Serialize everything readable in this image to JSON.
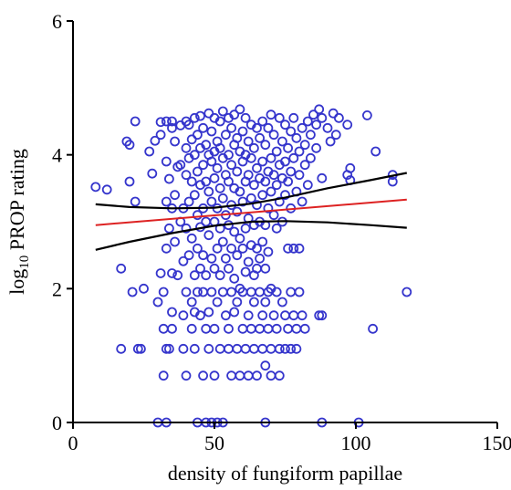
{
  "chart_data": {
    "type": "scatter",
    "title": "",
    "xlabel": "density of fungiform papillae",
    "ylabel_prefix": "log",
    "ylabel_subscript": "10",
    "ylabel_suffix": " PROP rating",
    "xlim": [
      0,
      150
    ],
    "ylim": [
      0,
      6
    ],
    "x_ticks": [
      0,
      50,
      100,
      150
    ],
    "y_ticks": [
      0,
      2,
      4,
      6
    ],
    "grid": false,
    "colors": {
      "points": "#3535cc",
      "fit": "#dd2222",
      "ci": "#000000",
      "axis": "#000000"
    },
    "series": [
      {
        "marker": "open-circle",
        "points": [
          [
            8,
            3.52
          ],
          [
            12,
            3.48
          ],
          [
            17,
            2.3
          ],
          [
            17,
            1.1
          ],
          [
            19,
            4.2
          ],
          [
            20,
            4.15
          ],
          [
            20,
            3.6
          ],
          [
            21,
            1.95
          ],
          [
            22,
            4.5
          ],
          [
            22,
            3.3
          ],
          [
            23,
            1.1
          ],
          [
            24,
            1.1
          ],
          [
            25,
            2.0
          ],
          [
            27,
            4.05
          ],
          [
            28,
            3.72
          ],
          [
            29,
            4.21
          ],
          [
            30,
            1.8
          ],
          [
            30,
            0.0
          ],
          [
            31,
            4.49
          ],
          [
            31,
            4.3
          ],
          [
            31,
            2.23
          ],
          [
            32,
            1.95
          ],
          [
            32,
            1.4
          ],
          [
            32,
            0.7
          ],
          [
            33,
            4.5
          ],
          [
            33,
            3.9
          ],
          [
            33,
            3.3
          ],
          [
            33,
            2.6
          ],
          [
            33,
            1.1
          ],
          [
            33,
            0.0
          ],
          [
            34,
            3.64
          ],
          [
            34,
            2.9
          ],
          [
            34,
            1.1
          ],
          [
            35,
            4.5
          ],
          [
            35,
            4.4
          ],
          [
            35,
            3.2
          ],
          [
            35,
            2.23
          ],
          [
            35,
            1.65
          ],
          [
            35,
            1.4
          ],
          [
            36,
            4.2
          ],
          [
            36,
            3.4
          ],
          [
            36,
            2.7
          ],
          [
            37,
            3.82
          ],
          [
            37,
            2.2
          ],
          [
            38,
            4.44
          ],
          [
            38,
            3.85
          ],
          [
            38,
            3.0
          ],
          [
            39,
            3.2
          ],
          [
            39,
            2.41
          ],
          [
            39,
            1.6
          ],
          [
            39,
            1.1
          ],
          [
            40,
            4.5
          ],
          [
            40,
            4.1
          ],
          [
            40,
            3.7
          ],
          [
            40,
            2.9
          ],
          [
            40,
            1.95
          ],
          [
            40,
            0.7
          ],
          [
            41,
            4.45
          ],
          [
            41,
            3.95
          ],
          [
            41,
            3.3
          ],
          [
            41,
            2.5
          ],
          [
            42,
            4.23
          ],
          [
            42,
            3.6
          ],
          [
            42,
            2.75
          ],
          [
            42,
            1.8
          ],
          [
            42,
            1.4
          ],
          [
            43,
            4.55
          ],
          [
            43,
            4.0
          ],
          [
            43,
            3.4
          ],
          [
            43,
            2.2
          ],
          [
            43,
            1.65
          ],
          [
            43,
            1.1
          ],
          [
            44,
            4.3
          ],
          [
            44,
            3.75
          ],
          [
            44,
            3.1
          ],
          [
            44,
            2.6
          ],
          [
            44,
            1.95
          ],
          [
            44,
            0.0
          ],
          [
            45,
            4.58
          ],
          [
            45,
            4.1
          ],
          [
            45,
            3.55
          ],
          [
            45,
            2.92
          ],
          [
            45,
            2.3
          ],
          [
            45,
            1.6
          ],
          [
            46,
            4.4
          ],
          [
            46,
            3.85
          ],
          [
            46,
            3.2
          ],
          [
            46,
            2.5
          ],
          [
            46,
            1.95
          ],
          [
            46,
            0.7
          ],
          [
            47,
            4.15
          ],
          [
            47,
            3.6
          ],
          [
            47,
            3.0
          ],
          [
            47,
            2.2
          ],
          [
            47,
            1.4
          ],
          [
            47,
            0.0
          ],
          [
            48,
            4.62
          ],
          [
            48,
            4.0
          ],
          [
            48,
            3.45
          ],
          [
            48,
            2.8
          ],
          [
            48,
            1.65
          ],
          [
            48,
            1.1
          ],
          [
            49,
            4.35
          ],
          [
            49,
            3.9
          ],
          [
            49,
            3.3
          ],
          [
            49,
            2.45
          ],
          [
            49,
            1.95
          ],
          [
            49,
            0.0
          ],
          [
            50,
            4.55
          ],
          [
            50,
            4.05
          ],
          [
            50,
            3.65
          ],
          [
            50,
            3.0
          ],
          [
            50,
            2.3
          ],
          [
            50,
            1.4
          ],
          [
            50,
            0.7
          ],
          [
            51,
            4.2
          ],
          [
            51,
            3.8
          ],
          [
            51,
            3.2
          ],
          [
            51,
            2.6
          ],
          [
            51,
            1.8
          ],
          [
            51,
            0.0
          ],
          [
            52,
            4.5
          ],
          [
            52,
            4.1
          ],
          [
            52,
            3.5
          ],
          [
            52,
            2.9
          ],
          [
            52,
            2.2
          ],
          [
            52,
            1.1
          ],
          [
            53,
            4.65
          ],
          [
            53,
            3.95
          ],
          [
            53,
            3.35
          ],
          [
            53,
            2.7
          ],
          [
            53,
            1.95
          ],
          [
            53,
            0.0
          ],
          [
            54,
            4.3
          ],
          [
            54,
            3.7
          ],
          [
            54,
            3.1
          ],
          [
            54,
            2.45
          ],
          [
            54,
            1.6
          ],
          [
            55,
            4.55
          ],
          [
            55,
            4.0
          ],
          [
            55,
            3.6
          ],
          [
            55,
            2.95
          ],
          [
            55,
            2.3
          ],
          [
            55,
            1.4
          ],
          [
            55,
            1.1
          ],
          [
            56,
            4.4
          ],
          [
            56,
            3.85
          ],
          [
            56,
            3.25
          ],
          [
            56,
            2.6
          ],
          [
            56,
            1.95
          ],
          [
            56,
            0.7
          ],
          [
            57,
            4.6
          ],
          [
            57,
            4.15
          ],
          [
            57,
            3.5
          ],
          [
            57,
            2.85
          ],
          [
            57,
            2.15
          ],
          [
            57,
            1.65
          ],
          [
            58,
            4.25
          ],
          [
            58,
            3.75
          ],
          [
            58,
            3.15
          ],
          [
            58,
            2.5
          ],
          [
            58,
            1.8
          ],
          [
            58,
            1.1
          ],
          [
            59,
            4.68
          ],
          [
            59,
            4.05
          ],
          [
            59,
            3.45
          ],
          [
            59,
            2.75
          ],
          [
            59,
            2.0
          ],
          [
            59,
            0.7
          ],
          [
            60,
            4.35
          ],
          [
            60,
            3.9
          ],
          [
            60,
            3.3
          ],
          [
            60,
            2.6
          ],
          [
            60,
            1.95
          ],
          [
            60,
            1.4
          ],
          [
            61,
            4.55
          ],
          [
            61,
            4.0
          ],
          [
            61,
            3.6
          ],
          [
            61,
            2.9
          ],
          [
            61,
            2.25
          ],
          [
            61,
            1.1
          ],
          [
            62,
            4.2
          ],
          [
            62,
            3.7
          ],
          [
            62,
            3.05
          ],
          [
            62,
            2.4
          ],
          [
            62,
            1.6
          ],
          [
            62,
            0.7
          ],
          [
            63,
            4.45
          ],
          [
            63,
            3.95
          ],
          [
            63,
            3.35
          ],
          [
            63,
            2.65
          ],
          [
            63,
            1.95
          ],
          [
            63,
            1.4
          ],
          [
            64,
            4.1
          ],
          [
            64,
            3.55
          ],
          [
            64,
            2.95
          ],
          [
            64,
            2.2
          ],
          [
            64,
            1.8
          ],
          [
            64,
            1.1
          ],
          [
            65,
            4.4
          ],
          [
            65,
            3.8
          ],
          [
            65,
            3.25
          ],
          [
            65,
            2.6
          ],
          [
            65,
            2.3
          ],
          [
            65,
            0.7
          ],
          [
            66,
            4.25
          ],
          [
            66,
            3.65
          ],
          [
            66,
            3.0
          ],
          [
            66,
            2.45
          ],
          [
            66,
            1.95
          ],
          [
            66,
            1.4
          ],
          [
            67,
            4.5
          ],
          [
            67,
            3.9
          ],
          [
            67,
            3.4
          ],
          [
            67,
            2.7
          ],
          [
            67,
            1.6
          ],
          [
            67,
            1.1
          ],
          [
            68,
            4.15
          ],
          [
            68,
            3.6
          ],
          [
            68,
            2.95
          ],
          [
            68,
            2.3
          ],
          [
            68,
            1.8
          ],
          [
            68,
            0.85
          ],
          [
            68,
            0.0
          ],
          [
            69,
            4.4
          ],
          [
            69,
            3.75
          ],
          [
            69,
            3.2
          ],
          [
            69,
            2.55
          ],
          [
            69,
            1.95
          ],
          [
            69,
            1.4
          ],
          [
            70,
            4.6
          ],
          [
            70,
            3.95
          ],
          [
            70,
            3.45
          ],
          [
            70,
            2.0
          ],
          [
            70,
            1.1
          ],
          [
            70,
            0.7
          ],
          [
            71,
            4.3
          ],
          [
            71,
            3.7
          ],
          [
            71,
            3.1
          ],
          [
            71,
            1.6
          ],
          [
            72,
            4.05
          ],
          [
            72,
            3.55
          ],
          [
            72,
            2.9
          ],
          [
            72,
            1.95
          ],
          [
            72,
            1.4
          ],
          [
            73,
            4.55
          ],
          [
            73,
            3.85
          ],
          [
            73,
            3.3
          ],
          [
            73,
            1.1
          ],
          [
            73,
            0.7
          ],
          [
            74,
            4.2
          ],
          [
            74,
            3.65
          ],
          [
            74,
            3.0
          ],
          [
            74,
            1.8
          ],
          [
            75,
            4.45
          ],
          [
            75,
            3.9
          ],
          [
            75,
            3.4
          ],
          [
            75,
            1.6
          ],
          [
            75,
            1.1
          ],
          [
            76,
            4.1
          ],
          [
            76,
            3.6
          ],
          [
            76,
            2.6
          ],
          [
            76,
            1.4
          ],
          [
            77,
            4.35
          ],
          [
            77,
            3.75
          ],
          [
            77,
            3.2
          ],
          [
            77,
            1.95
          ],
          [
            77,
            1.1
          ],
          [
            78,
            4.55
          ],
          [
            78,
            3.95
          ],
          [
            78,
            2.6
          ],
          [
            78,
            1.6
          ],
          [
            79,
            4.25
          ],
          [
            79,
            3.45
          ],
          [
            79,
            1.4
          ],
          [
            79,
            1.1
          ],
          [
            80,
            4.05
          ],
          [
            80,
            3.7
          ],
          [
            80,
            2.6
          ],
          [
            80,
            1.95
          ],
          [
            81,
            4.4
          ],
          [
            81,
            3.3
          ],
          [
            81,
            1.6
          ],
          [
            82,
            4.15
          ],
          [
            82,
            3.85
          ],
          [
            82,
            1.4
          ],
          [
            83,
            4.5
          ],
          [
            83,
            3.55
          ],
          [
            84,
            4.3
          ],
          [
            84,
            3.95
          ],
          [
            85,
            4.6
          ],
          [
            86,
            4.45
          ],
          [
            86,
            4.1
          ],
          [
            87,
            4.68
          ],
          [
            87,
            1.6
          ],
          [
            88,
            4.55
          ],
          [
            88,
            3.65
          ],
          [
            88,
            1.6
          ],
          [
            88,
            0.0
          ],
          [
            90,
            4.4
          ],
          [
            91,
            4.2
          ],
          [
            92,
            4.62
          ],
          [
            93,
            4.3
          ],
          [
            94,
            4.55
          ],
          [
            97,
            4.45
          ],
          [
            97,
            3.7
          ],
          [
            98,
            3.8
          ],
          [
            98,
            3.62
          ],
          [
            101,
            0.0
          ],
          [
            104,
            4.59
          ],
          [
            106,
            1.4
          ],
          [
            107,
            4.05
          ],
          [
            113,
            3.7
          ],
          [
            113,
            3.6
          ],
          [
            118,
            1.95
          ]
        ]
      }
    ],
    "fit_line": {
      "x": [
        8,
        118
      ],
      "y": [
        2.95,
        3.33
      ]
    },
    "ci_upper": {
      "x": [
        8,
        20,
        35,
        50,
        63,
        75,
        90,
        105,
        118
      ],
      "y": [
        3.26,
        3.22,
        3.2,
        3.21,
        3.27,
        3.36,
        3.5,
        3.62,
        3.73
      ]
    },
    "ci_lower": {
      "x": [
        8,
        20,
        35,
        50,
        63,
        75,
        90,
        105,
        118
      ],
      "y": [
        2.58,
        2.7,
        2.83,
        2.94,
        3.0,
        3.01,
        2.99,
        2.95,
        2.91
      ]
    }
  }
}
